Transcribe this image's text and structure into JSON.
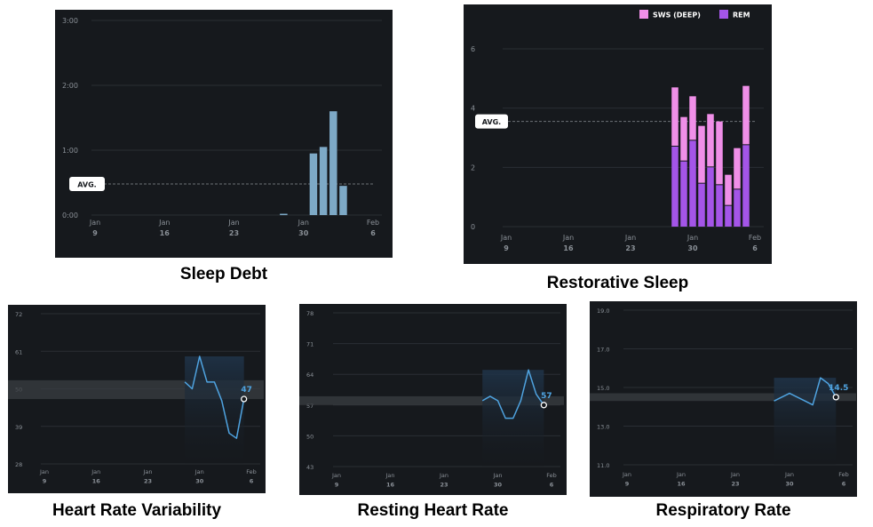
{
  "colors": {
    "panel_bg": "#16191d",
    "grid": "#2a2e34",
    "tick_text": "#8a9097",
    "bar_debt": "#7da9c6",
    "sws": "#f08fe8",
    "rem": "#a455e8",
    "line_blue": "#4fa3e0",
    "band": "#3a3d42",
    "avg_badge_bg": "#ffffff",
    "avg_badge_text": "#16191d"
  },
  "chart_data": [
    {
      "id": "sleep_debt",
      "type": "bar",
      "title": "Sleep Debt",
      "y_ticks": [
        "0:00",
        "1:00",
        "2:00",
        "3:00"
      ],
      "ylim": [
        0,
        3
      ],
      "x_labels": [
        {
          "month": "Jan",
          "day": "9",
          "index": 0
        },
        {
          "month": "Jan",
          "day": "16",
          "index": 7
        },
        {
          "month": "Jan",
          "day": "23",
          "index": 14
        },
        {
          "month": "Jan",
          "day": "30",
          "index": 21
        },
        {
          "month": "Feb",
          "day": "6",
          "index": 28
        }
      ],
      "avg_label": "AVG.",
      "avg_value": 0.48,
      "bars": [
        {
          "index": 19,
          "value": 0.02
        },
        {
          "index": 22,
          "value": 0.95
        },
        {
          "index": 23,
          "value": 1.05
        },
        {
          "index": 24,
          "value": 1.6
        },
        {
          "index": 25,
          "value": 0.45
        }
      ]
    },
    {
      "id": "restorative_sleep",
      "type": "bar",
      "title": "Restorative Sleep",
      "legend": [
        "SWS (DEEP)",
        "REM"
      ],
      "y_ticks": [
        "0",
        "2",
        "4",
        "6"
      ],
      "ylim": [
        0,
        6
      ],
      "x_labels": [
        {
          "month": "Jan",
          "day": "9",
          "index": 0
        },
        {
          "month": "Jan",
          "day": "16",
          "index": 7
        },
        {
          "month": "Jan",
          "day": "23",
          "index": 14
        },
        {
          "month": "Jan",
          "day": "30",
          "index": 21
        },
        {
          "month": "Feb",
          "day": "6",
          "index": 28
        }
      ],
      "avg_label": "AVG.",
      "avg_value": 3.55,
      "stacks": [
        {
          "index": 19,
          "rem": 2.7,
          "sws": 2.0
        },
        {
          "index": 20,
          "rem": 2.2,
          "sws": 1.5
        },
        {
          "index": 21,
          "rem": 2.9,
          "sws": 1.5
        },
        {
          "index": 22,
          "rem": 1.45,
          "sws": 1.95
        },
        {
          "index": 23,
          "rem": 2.0,
          "sws": 1.8
        },
        {
          "index": 24,
          "rem": 1.4,
          "sws": 2.15
        },
        {
          "index": 25,
          "rem": 0.7,
          "sws": 1.05
        },
        {
          "index": 26,
          "rem": 1.25,
          "sws": 1.4
        },
        {
          "index": 27,
          "rem": 2.75,
          "sws": 2.0
        }
      ]
    },
    {
      "id": "hrv",
      "type": "line",
      "title": "Heart Rate Variability",
      "y_ticks": [
        "28",
        "39",
        "50",
        "61",
        "72"
      ],
      "ylim": [
        28,
        72
      ],
      "x_labels": [
        {
          "month": "Jan",
          "day": "9",
          "index": 0
        },
        {
          "month": "Jan",
          "day": "16",
          "index": 7
        },
        {
          "month": "Jan",
          "day": "23",
          "index": 14
        },
        {
          "month": "Jan",
          "day": "30",
          "index": 21
        },
        {
          "month": "Feb",
          "day": "6",
          "index": 28
        }
      ],
      "band": [
        47,
        52.5
      ],
      "points": [
        {
          "index": 19,
          "value": 52
        },
        {
          "index": 20,
          "value": 50
        },
        {
          "index": 21,
          "value": 59.5
        },
        {
          "index": 22,
          "value": 52
        },
        {
          "index": 23,
          "value": 52
        },
        {
          "index": 24,
          "value": 46.5
        },
        {
          "index": 25,
          "value": 37
        },
        {
          "index": 26,
          "value": 35.5
        },
        {
          "index": 27,
          "value": 47
        }
      ],
      "last_label": "47"
    },
    {
      "id": "rhr",
      "type": "line",
      "title": "Resting Heart Rate",
      "y_ticks": [
        "43",
        "50",
        "57",
        "64",
        "71",
        "78"
      ],
      "ylim": [
        43,
        78
      ],
      "x_labels": [
        {
          "month": "Jan",
          "day": "9",
          "index": 0
        },
        {
          "month": "Jan",
          "day": "16",
          "index": 7
        },
        {
          "month": "Jan",
          "day": "23",
          "index": 14
        },
        {
          "month": "Jan",
          "day": "30",
          "index": 21
        },
        {
          "month": "Feb",
          "day": "6",
          "index": 28
        }
      ],
      "band": [
        57,
        59
      ],
      "points": [
        {
          "index": 19,
          "value": 58
        },
        {
          "index": 20,
          "value": 59
        },
        {
          "index": 21,
          "value": 58
        },
        {
          "index": 22,
          "value": 54
        },
        {
          "index": 23,
          "value": 54
        },
        {
          "index": 24,
          "value": 58
        },
        {
          "index": 25,
          "value": 65
        },
        {
          "index": 26,
          "value": 59.5
        },
        {
          "index": 27,
          "value": 57
        }
      ],
      "last_label": "57"
    },
    {
      "id": "resp_rate",
      "type": "line",
      "title": "Respiratory Rate",
      "y_ticks": [
        "11.0",
        "13.0",
        "15.0",
        "17.0",
        "19.0"
      ],
      "ylim": [
        11,
        19
      ],
      "x_labels": [
        {
          "month": "Jan",
          "day": "9",
          "index": 0
        },
        {
          "month": "Jan",
          "day": "16",
          "index": 7
        },
        {
          "month": "Jan",
          "day": "23",
          "index": 14
        },
        {
          "month": "Jan",
          "day": "30",
          "index": 21
        },
        {
          "month": "Feb",
          "day": "6",
          "index": 28
        }
      ],
      "band": [
        14.3,
        14.7
      ],
      "points": [
        {
          "index": 19,
          "value": 14.3
        },
        {
          "index": 21,
          "value": 14.7
        },
        {
          "index": 23,
          "value": 14.3
        },
        {
          "index": 24,
          "value": 14.1
        },
        {
          "index": 25,
          "value": 15.5
        },
        {
          "index": 26,
          "value": 15.2
        },
        {
          "index": 27,
          "value": 14.5
        }
      ],
      "last_label": "14.5"
    }
  ]
}
